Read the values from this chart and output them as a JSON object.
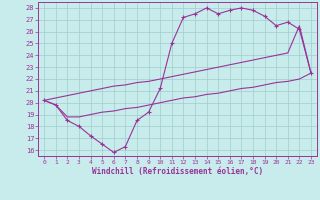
{
  "xlabel": "Windchill (Refroidissement éolien,°C)",
  "xlim": [
    -0.5,
    23.5
  ],
  "ylim": [
    15.5,
    28.5
  ],
  "xticks": [
    0,
    1,
    2,
    3,
    4,
    5,
    6,
    7,
    8,
    9,
    10,
    11,
    12,
    13,
    14,
    15,
    16,
    17,
    18,
    19,
    20,
    21,
    22,
    23
  ],
  "yticks": [
    16,
    17,
    18,
    19,
    20,
    21,
    22,
    23,
    24,
    25,
    26,
    27,
    28
  ],
  "bg_color": "#c8ecec",
  "grid_color": "#a0cccc",
  "line_color": "#993399",
  "curve1_x": [
    0,
    1,
    2,
    3,
    4,
    5,
    6,
    7,
    8,
    9,
    10,
    11,
    12,
    13,
    14,
    15,
    16,
    17,
    18,
    19,
    20,
    21,
    22,
    23
  ],
  "curve1_y": [
    20.2,
    19.8,
    18.5,
    18.0,
    17.2,
    16.5,
    15.8,
    16.3,
    18.5,
    19.2,
    21.2,
    25.0,
    27.2,
    27.5,
    28.0,
    27.5,
    27.8,
    28.0,
    27.8,
    27.3,
    26.5,
    26.8,
    26.2,
    22.5
  ],
  "curve2_x": [
    0,
    1,
    2,
    3,
    4,
    5,
    6,
    7,
    8,
    9,
    10,
    11,
    12,
    13,
    14,
    15,
    16,
    17,
    18,
    19,
    20,
    21,
    22,
    23
  ],
  "curve2_y": [
    20.2,
    20.4,
    20.6,
    20.8,
    21.0,
    21.2,
    21.4,
    21.5,
    21.7,
    21.8,
    22.0,
    22.2,
    22.4,
    22.6,
    22.8,
    23.0,
    23.2,
    23.4,
    23.6,
    23.8,
    24.0,
    24.2,
    26.5,
    22.5
  ],
  "curve3_x": [
    0,
    1,
    2,
    3,
    4,
    5,
    6,
    7,
    8,
    9,
    10,
    11,
    12,
    13,
    14,
    15,
    16,
    17,
    18,
    19,
    20,
    21,
    22,
    23
  ],
  "curve3_y": [
    20.2,
    19.8,
    18.8,
    18.8,
    19.0,
    19.2,
    19.3,
    19.5,
    19.6,
    19.8,
    20.0,
    20.2,
    20.4,
    20.5,
    20.7,
    20.8,
    21.0,
    21.2,
    21.3,
    21.5,
    21.7,
    21.8,
    22.0,
    22.5
  ]
}
